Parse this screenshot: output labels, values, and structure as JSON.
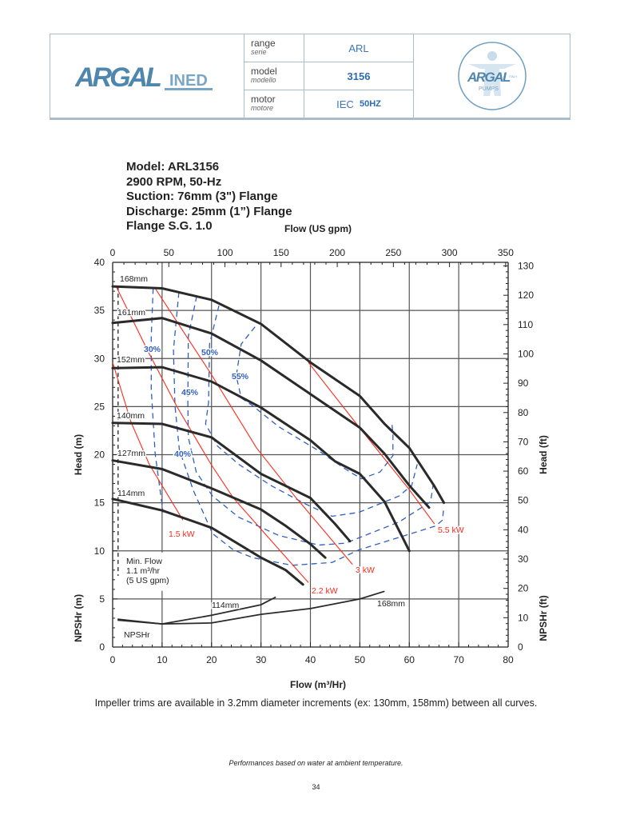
{
  "header": {
    "brand_logo": "ARGAL INED",
    "badge_logo": "ARGAL PUMPS ITALY",
    "rows": [
      {
        "label": "range",
        "label_it": "serie",
        "value": "ARL"
      },
      {
        "label": "model",
        "label_it": "modello",
        "value": "3156"
      },
      {
        "label": "motor",
        "label_it": "motore",
        "value_prefix": "IEC",
        "value": "50HZ"
      }
    ]
  },
  "specs": [
    "Model: ARL3156",
    "2900 RPM, 50-Hz",
    "Suction: 76mm (3\") Flange",
    "Discharge: 25mm (1”) Flange",
    "Flange S.G. 1.0"
  ],
  "chart_data": {
    "type": "line",
    "xlabel": "Flow (m³/Hr)",
    "x2label": "Flow (US gpm)",
    "ylabel": "Head (m)",
    "ylabel_lower": "NPSHr (m)",
    "y2label": "Head (ft)",
    "y2label_lower": "NPSHr (ft)",
    "xlim": [
      0,
      80
    ],
    "ylim": [
      0,
      40
    ],
    "x2lim_gpm": [
      0,
      350
    ],
    "y2lim_ft": [
      0,
      130
    ],
    "x_ticks": [
      "0",
      "10",
      "20",
      "30",
      "40",
      "50",
      "60",
      "70",
      "80"
    ],
    "x2_ticks": [
      "0",
      "50",
      "100",
      "150",
      "200",
      "250",
      "300",
      "350"
    ],
    "y_ticks": [
      "0",
      "5",
      "10",
      "15",
      "20",
      "25",
      "30",
      "35",
      "40"
    ],
    "y2_ticks": [
      "0",
      "10",
      "20",
      "30",
      "40",
      "50",
      "60",
      "70",
      "80",
      "90",
      "100",
      "110",
      "120",
      "130"
    ],
    "grid": true,
    "head_curves": [
      {
        "name": "168mm",
        "points": [
          [
            0,
            37.5
          ],
          [
            10,
            37.3
          ],
          [
            20,
            36.1
          ],
          [
            30,
            33.6
          ],
          [
            40,
            29.6
          ],
          [
            50,
            26.1
          ],
          [
            55,
            23.2
          ],
          [
            60,
            20.7
          ],
          [
            65,
            16.8
          ],
          [
            67,
            15
          ]
        ]
      },
      {
        "name": "161mm",
        "points": [
          [
            0,
            33.7
          ],
          [
            10,
            34.2
          ],
          [
            20,
            32.6
          ],
          [
            30,
            29.8
          ],
          [
            40,
            26.3
          ],
          [
            50,
            22.8
          ],
          [
            55,
            20.1
          ],
          [
            60,
            16.8
          ],
          [
            64,
            14.5
          ]
        ]
      },
      {
        "name": "152mm",
        "points": [
          [
            0,
            29
          ],
          [
            10,
            29.1
          ],
          [
            20,
            27.6
          ],
          [
            30,
            24.9
          ],
          [
            40,
            21.5
          ],
          [
            45,
            19.3
          ],
          [
            50,
            18
          ],
          [
            55,
            15.1
          ],
          [
            60,
            10
          ]
        ]
      },
      {
        "name": "140mm",
        "points": [
          [
            0,
            23.3
          ],
          [
            10,
            23.2
          ],
          [
            20,
            21.8
          ],
          [
            30,
            18
          ],
          [
            40,
            15.5
          ],
          [
            45,
            12.8
          ],
          [
            48,
            11
          ]
        ]
      },
      {
        "name": "127mm",
        "points": [
          [
            0,
            19.4
          ],
          [
            10,
            18.5
          ],
          [
            20,
            16.5
          ],
          [
            30,
            14.3
          ],
          [
            35,
            12.6
          ],
          [
            40,
            10.7
          ],
          [
            43,
            9.3
          ]
        ]
      },
      {
        "name": "114mm",
        "points": [
          [
            0,
            15.4
          ],
          [
            10,
            14.2
          ],
          [
            20,
            12.4
          ],
          [
            30,
            9.3
          ],
          [
            35,
            8
          ],
          [
            38.5,
            6.5
          ]
        ]
      }
    ],
    "npsh_curves": [
      {
        "name": "114mm",
        "points": [
          [
            1,
            2.9
          ],
          [
            10,
            2.4
          ],
          [
            20,
            3.3
          ],
          [
            30,
            4.4
          ],
          [
            33,
            5.2
          ]
        ]
      },
      {
        "name": "168mm",
        "points": [
          [
            1,
            2.8
          ],
          [
            10,
            2.4
          ],
          [
            20,
            2.5
          ],
          [
            30,
            3.4
          ],
          [
            40,
            4
          ],
          [
            50,
            5
          ],
          [
            55,
            5.8
          ]
        ]
      }
    ],
    "npsh_label": "NPSHr",
    "power_lines": [
      {
        "name": "1.5 kW",
        "points": [
          [
            0,
            29.6
          ],
          [
            3.7,
            23.4
          ],
          [
            7.4,
            19
          ],
          [
            14.2,
            13.2
          ]
        ]
      },
      {
        "name": "2.2 kW",
        "points": [
          [
            0.8,
            37.4
          ],
          [
            7.4,
            30.5
          ],
          [
            13,
            25
          ],
          [
            19.9,
            19
          ],
          [
            24.4,
            15.5
          ],
          [
            39.6,
            6.7
          ]
        ]
      },
      {
        "name": "3 kW",
        "points": [
          [
            8.6,
            37.3
          ],
          [
            19.9,
            28.4
          ],
          [
            29.1,
            20.7
          ],
          [
            36.8,
            15.7
          ],
          [
            48.5,
            8.6
          ]
        ]
      },
      {
        "name": "5.5 kW",
        "points": [
          [
            39.6,
            29.6
          ],
          [
            41.7,
            28.2
          ],
          [
            49.8,
            22.9
          ],
          [
            59.8,
            16.5
          ],
          [
            65.1,
            12.8
          ]
        ]
      }
    ],
    "efficiency_curves": [
      {
        "name": "30%",
        "points": [
          [
            8.2,
            37.3
          ],
          [
            7.8,
            32.3
          ],
          [
            7.8,
            26.8
          ],
          [
            8.6,
            20.1
          ],
          [
            10.2,
            14
          ]
        ]
      },
      {
        "name": "40%",
        "points": [
          [
            13.4,
            36.9
          ],
          [
            12.3,
            30.9
          ],
          [
            12.6,
            25.1
          ],
          [
            13.5,
            20.5
          ],
          [
            16.3,
            16.3
          ],
          [
            20.2,
            11.8
          ],
          [
            24.4,
            10.1
          ],
          [
            28.3,
            9.3
          ],
          [
            36.3,
            8.5
          ],
          [
            44.4,
            8.8
          ],
          [
            49.8,
            10.1
          ],
          [
            65.4,
            12.6
          ],
          [
            66.7,
            13.2
          ],
          [
            67,
            14.6
          ]
        ]
      },
      {
        "name": "45%",
        "points": [
          [
            17,
            36.5
          ],
          [
            15.3,
            32.3
          ],
          [
            15.2,
            25.4
          ],
          [
            15.3,
            21.8
          ],
          [
            16.9,
            18.2
          ],
          [
            20.2,
            15.7
          ],
          [
            25.5,
            13.5
          ],
          [
            33.6,
            11.6
          ],
          [
            41.7,
            10.6
          ],
          [
            47.1,
            10.8
          ],
          [
            57.9,
            13
          ],
          [
            64.3,
            15.1
          ],
          [
            64.8,
            16.8
          ]
        ]
      },
      {
        "name": "50%",
        "points": [
          [
            21.5,
            35.5
          ],
          [
            19.6,
            31.5
          ],
          [
            19.4,
            25.4
          ],
          [
            18.8,
            23.2
          ],
          [
            21.2,
            20.9
          ],
          [
            25.5,
            19
          ],
          [
            32,
            16.8
          ],
          [
            38.9,
            14.9
          ],
          [
            44.4,
            13.6
          ],
          [
            49.8,
            14
          ],
          [
            57.9,
            15.7
          ],
          [
            60.5,
            16.8
          ],
          [
            61.6,
            19
          ]
        ]
      },
      {
        "name": "55%",
        "points": [
          [
            28.8,
            33.3
          ],
          [
            26,
            31.5
          ],
          [
            25,
            28.2
          ],
          [
            26,
            25.9
          ],
          [
            28.3,
            25.1
          ],
          [
            33.6,
            22.9
          ],
          [
            41.7,
            20.4
          ],
          [
            47.1,
            18.5
          ],
          [
            50.3,
            17.5
          ],
          [
            54.1,
            18.2
          ],
          [
            56.7,
            19.9
          ],
          [
            56.7,
            22.1
          ],
          [
            56.5,
            23.2
          ]
        ]
      }
    ],
    "min_flow": {
      "flow": 1.1,
      "lines": [
        "Min. Flow",
        "1.1 m³/hr",
        "(5 US gpm)"
      ]
    },
    "colors": {
      "head": "#2a2a2a",
      "power": "#ff2a1a",
      "efficiency": "#2f5fc0",
      "grid": "#555555"
    }
  },
  "footer": {
    "note": "Impeller trims are available in 3.2mm diameter increments (ex: 130mm, 158mm) between all curves.",
    "disclaimer": "Performances based on water at ambient temperature.",
    "page_number": "34"
  }
}
